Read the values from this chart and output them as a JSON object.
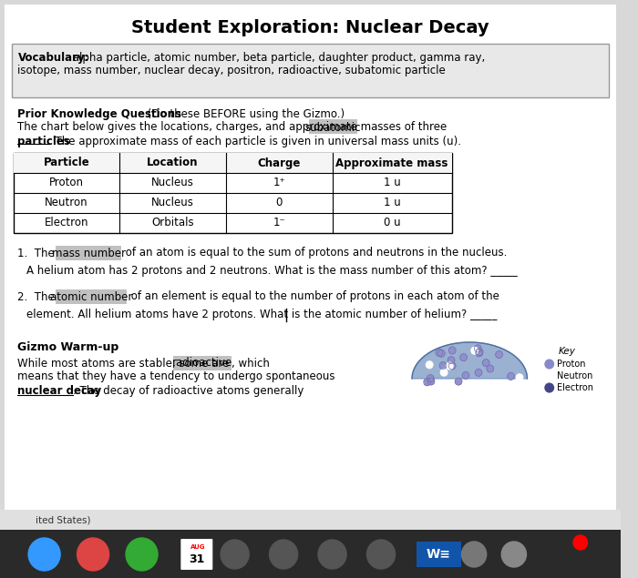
{
  "title": "Student Exploration: Nuclear Decay",
  "bg_color": "#d8d8d8",
  "content_bg": "#f0f0f0",
  "vocab_label": "Vocabulary:",
  "vocab_text": " alpha particle, atomic number, beta particle, daughter product, gamma ray,\nisotope, mass number, nuclear decay, positron, radioactive, subatomic particle",
  "prior_bold": "Prior Knowledge Questions",
  "prior_rest": " (Do these BEFORE using the Gizmo.)",
  "prior_line2": "The chart below gives the locations, charges, and approximate masses of three ",
  "prior_highlight": "subatomic",
  "prior_line3": "particles",
  "prior_line3b": ". The approximate mass of each particle is given in universal mass units (u).",
  "table_headers": [
    "Particle",
    "Location",
    "Charge",
    "Approximate mass"
  ],
  "table_rows": [
    [
      "Proton",
      "Nucleus",
      "1⁺",
      "1 u"
    ],
    [
      "Neutron",
      "Nucleus",
      "0",
      "1 u"
    ],
    [
      "Electron",
      "Orbitals",
      "1⁻",
      "0 u"
    ]
  ],
  "q1_pre": "1.  The ",
  "q1_highlight": "mass number",
  "q1_post": " of an atom is equal to the sum of protons and neutrons in the nucleus.",
  "q1_sub": "A helium atom has 2 protons and 2 neutrons. What is the mass number of this atom? _____",
  "q2_pre": "2.  The ",
  "q2_highlight": "atomic number",
  "q2_post": " of an element is equal to the number of protons in each atom of the",
  "q2_sub": "element. All helium atoms have 2 protons. What is the atomic number of helium? _____",
  "gizmo_title": "Gizmo Warm-up",
  "gizmo_line1": "While most atoms are stable, some are ",
  "gizmo_highlight": "radioactive",
  "gizmo_line1b": ", which",
  "gizmo_line2": "means that they have a tendency to undergo spontaneous",
  "gizmo_line3_bold": "nuclear decay",
  "gizmo_line3b": ". The decay of radioactive atoms generally",
  "key_title": "Key",
  "key_items": [
    "Proton",
    "Neutron",
    "Electron"
  ],
  "key_colors": [
    "#8888cc",
    "#ffffff",
    "#444488"
  ],
  "footer": "ited States)",
  "taskbar_date": "AUG\n31"
}
